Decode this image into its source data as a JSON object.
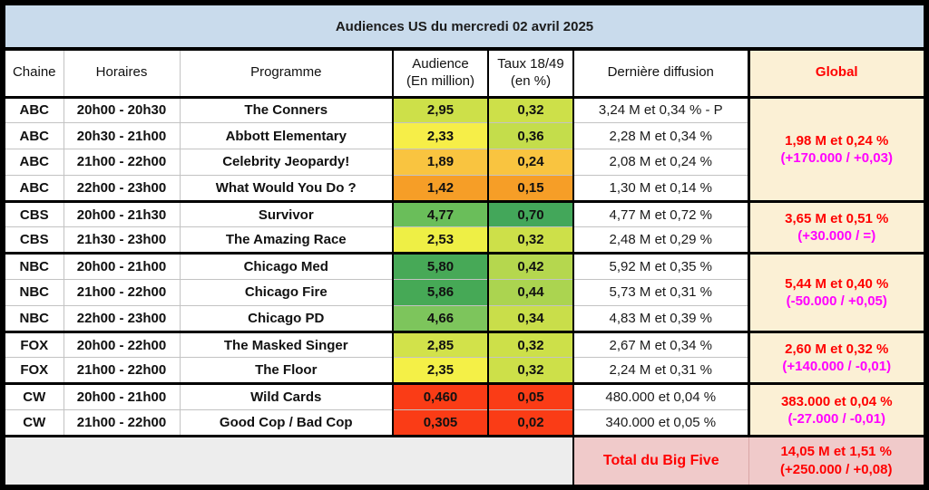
{
  "title": "Audiences US du mercredi 02 avril 2025",
  "columns": {
    "chaine": "Chaine",
    "horaires": "Horaires",
    "programme": "Programme",
    "audience_line1": "Audience",
    "audience_line2": "(En million)",
    "taux_line1": "Taux 18/49",
    "taux_line2": "(en %)",
    "derniere": "Dernière diffusion",
    "global": "Global"
  },
  "palette": {
    "title_bg": "#c9dbec",
    "global_bg": "#fbf0d5",
    "total_bg": "#f0caca",
    "empty_bg": "#ededed",
    "red_text": "#ff0000",
    "magenta_text": "#ff00ff",
    "grid_grey": "#c3c3c3"
  },
  "chart_data": {
    "type": "table",
    "title": "Audiences US du mercredi 02 avril 2025",
    "rows": [
      {
        "chaine": "ABC",
        "horaires": "20h00 - 20h30",
        "programme": "The Conners",
        "audience": "2,95",
        "audience_color": "#cde049",
        "taux": "0,32",
        "taux_color": "#cde049",
        "derniere": "3,24 M et 0,34 % - P"
      },
      {
        "chaine": "ABC",
        "horaires": "20h30 - 21h00",
        "programme": "Abbott Elementary",
        "audience": "2,33",
        "audience_color": "#f6ee48",
        "taux": "0,36",
        "taux_color": "#c4dd4b",
        "derniere": "2,28 M et 0,34 %"
      },
      {
        "chaine": "ABC",
        "horaires": "21h00 - 22h00",
        "programme": "Celebrity Jeopardy!",
        "audience": "1,89",
        "audience_color": "#f9c440",
        "taux": "0,24",
        "taux_color": "#f9c440",
        "derniere": "2,08 M et 0,24 %"
      },
      {
        "chaine": "ABC",
        "horaires": "22h00 - 23h00",
        "programme": "What Would You Do ?",
        "audience": "1,42",
        "audience_color": "#f69e27",
        "taux": "0,15",
        "taux_color": "#f69e27",
        "derniere": "1,30 M et 0,14 %"
      },
      {
        "chaine": "CBS",
        "horaires": "20h00 - 21h30",
        "programme": "Survivor",
        "audience": "4,77",
        "audience_color": "#6abe5a",
        "taux": "0,70",
        "taux_color": "#43a75a",
        "derniere": "4,77 M et 0,72 %"
      },
      {
        "chaine": "CBS",
        "horaires": "21h30 - 23h00",
        "programme": "The Amazing Race",
        "audience": "2,53",
        "audience_color": "#eeef45",
        "taux": "0,32",
        "taux_color": "#cde049",
        "derniere": "2,48 M et 0,29 %"
      },
      {
        "chaine": "NBC",
        "horaires": "20h00 - 21h00",
        "programme": "Chicago Med",
        "audience": "5,80",
        "audience_color": "#47a957",
        "taux": "0,42",
        "taux_color": "#b5d74e",
        "derniere": "5,92 M et 0,35 %"
      },
      {
        "chaine": "NBC",
        "horaires": "21h00 - 22h00",
        "programme": "Chicago Fire",
        "audience": "5,86",
        "audience_color": "#46a956",
        "taux": "0,44",
        "taux_color": "#abd450",
        "derniere": "5,73 M et 0,31 %"
      },
      {
        "chaine": "NBC",
        "horaires": "22h00 - 23h00",
        "programme": "Chicago PD",
        "audience": "4,66",
        "audience_color": "#7dc55c",
        "taux": "0,34",
        "taux_color": "#c9de4a",
        "derniere": "4,83 M et 0,39 %"
      },
      {
        "chaine": "FOX",
        "horaires": "20h00 - 22h00",
        "programme": "The Masked Singer",
        "audience": "2,85",
        "audience_color": "#d2e24a",
        "taux": "0,32",
        "taux_color": "#cde049",
        "derniere": "2,67 M et 0,34 %"
      },
      {
        "chaine": "FOX",
        "horaires": "21h00 - 22h00",
        "programme": "The Floor",
        "audience": "2,35",
        "audience_color": "#f4f047",
        "taux": "0,32",
        "taux_color": "#cde049",
        "derniere": "2,24 M et 0,31 %"
      },
      {
        "chaine": "CW",
        "horaires": "20h00 - 21h00",
        "programme": "Wild Cards",
        "audience": "0,460",
        "audience_color": "#fa3c16",
        "taux": "0,05",
        "taux_color": "#fa3c16",
        "derniere": "480.000 et 0,04 %"
      },
      {
        "chaine": "CW",
        "horaires": "21h00 - 22h00",
        "programme": "Good Cop / Bad Cop",
        "audience": "0,305",
        "audience_color": "#fa3c16",
        "taux": "0,02",
        "taux_color": "#fa3c16",
        "derniere": "340.000 et 0,05 %"
      }
    ],
    "groups": [
      {
        "channel": "ABC",
        "row_span": 4,
        "line1": "1,98 M et 0,24 %",
        "line2": "(+170.000 / +0,03)"
      },
      {
        "channel": "CBS",
        "row_span": 2,
        "line1": "3,65 M et 0,51 %",
        "line2": "(+30.000 / =)"
      },
      {
        "channel": "NBC",
        "row_span": 3,
        "line1": "5,44 M et 0,40 %",
        "line2": "(-50.000 / +0,05)"
      },
      {
        "channel": "FOX",
        "row_span": 2,
        "line1": "2,60 M et 0,32 %",
        "line2": "(+140.000 / -0,01)"
      },
      {
        "channel": "CW",
        "row_span": 2,
        "line1": "383.000 et 0,04 %",
        "line2": "(-27.000 / -0,01)"
      }
    ],
    "total": {
      "label": "Total du Big Five",
      "line1": "14,05 M et 1,51 %",
      "line2": "(+250.000 / +0,08)"
    }
  }
}
